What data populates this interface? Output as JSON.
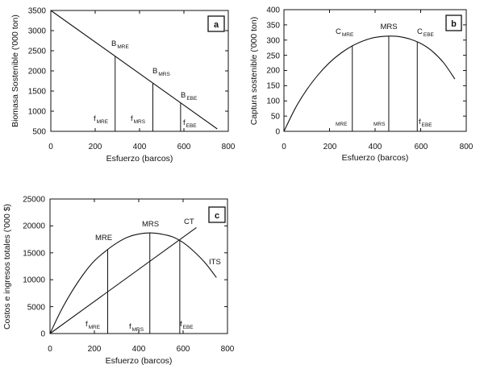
{
  "chart_data": [
    {
      "id": "a",
      "type": "line",
      "panel_label": "a",
      "xlabel": "Esfuerzo (barcos)",
      "ylabel": "Biomasa Sostenible ('000 ton)",
      "xlim": [
        0,
        800
      ],
      "ylim": [
        500,
        3500
      ],
      "xticks": [
        "0",
        "200",
        "400",
        "600",
        "800"
      ],
      "yticks": [
        "500",
        "1000",
        "1500",
        "2000",
        "2500",
        "3000",
        "3500"
      ],
      "series": [
        {
          "name": "Biomasa",
          "x": [
            0,
            750
          ],
          "y": [
            3500,
            560
          ]
        }
      ],
      "markers": [
        {
          "label": "B",
          "sub": "MRE",
          "x": 290,
          "y": 2400
        },
        {
          "label": "B",
          "sub": "MRS",
          "x": 460,
          "y": 1760
        },
        {
          "label": "B",
          "sub": "EBE",
          "x": 585,
          "y": 1200
        }
      ],
      "effort_labels": [
        {
          "label": "f",
          "sub": "MRE",
          "x": 240,
          "y": 850
        },
        {
          "label": "f",
          "sub": "MRS",
          "x": 405,
          "y": 850
        },
        {
          "label": "f",
          "sub": "EBE",
          "x": 600,
          "y": 760
        }
      ]
    },
    {
      "id": "b",
      "type": "line",
      "panel_label": "b",
      "xlabel": "Esfuerzo (barcos)",
      "ylabel": "Captura sostenible ('000 ton)",
      "xlim": [
        0,
        800
      ],
      "ylim": [
        0,
        400
      ],
      "xticks": [
        "0",
        "200",
        "400",
        "600",
        "800"
      ],
      "yticks": [
        "0",
        "50",
        "100",
        "150",
        "200",
        "250",
        "300",
        "350",
        "400"
      ],
      "series": [
        {
          "name": "Captura",
          "x": [
            0,
            50,
            100,
            150,
            200,
            250,
            300,
            350,
            400,
            460,
            500,
            550,
            600,
            650,
            700,
            750
          ],
          "y": [
            0,
            76,
            137,
            186,
            226,
            257,
            281,
            298,
            309,
            313,
            312,
            304,
            289,
            264,
            226,
            172
          ]
        }
      ],
      "markers": [
        {
          "label": "C",
          "sub": "MRE",
          "x": 300,
          "y": 280
        },
        {
          "label": "MRS",
          "sub": "",
          "x": 460,
          "y": 313
        },
        {
          "label": "C",
          "sub": "EBE",
          "x": 585,
          "y": 290
        }
      ],
      "effort_labels": [
        {
          "label": "",
          "sub": "MRE",
          "x": 250,
          "y": 25
        },
        {
          "label": "",
          "sub": "MRS",
          "x": 415,
          "y": 25
        },
        {
          "label": "f",
          "sub": "EBE",
          "x": 585,
          "y": 25
        }
      ]
    },
    {
      "id": "c",
      "type": "line",
      "panel_label": "c",
      "xlabel": "Esfuerzo (barcos)",
      "ylabel": "Costos e ingresos totales ('000 $)",
      "xlim": [
        0,
        800
      ],
      "ylim": [
        0,
        25000
      ],
      "xticks": [
        "0",
        "200",
        "400",
        "600",
        "800"
      ],
      "yticks": [
        "0",
        "5000",
        "10000",
        "15000",
        "20000",
        "25000"
      ],
      "series": [
        {
          "name": "ITS",
          "x": [
            0,
            50,
            100,
            150,
            200,
            250,
            300,
            350,
            400,
            450,
            500,
            550,
            600,
            650,
            700,
            750
          ],
          "y": [
            0,
            4300,
            7900,
            11000,
            13500,
            15300,
            16800,
            17900,
            18500,
            18700,
            18500,
            18000,
            16900,
            15200,
            13100,
            10400
          ]
        },
        {
          "name": "CT",
          "x": [
            0,
            660
          ],
          "y": [
            0,
            19700
          ]
        }
      ],
      "markers": [
        {
          "label": "MRE",
          "sub": "",
          "x": 260,
          "y": 15400
        },
        {
          "label": "MRS",
          "sub": "",
          "x": 450,
          "y": 18700
        },
        {
          "label": "CT",
          "sub": "",
          "x": 610,
          "y": 19700
        },
        {
          "label": "ITS",
          "sub": "",
          "x": 670,
          "y": 12800
        }
      ],
      "effort_labels": [
        {
          "label": "f",
          "sub": "MRE",
          "x": 260,
          "y": 1400
        },
        {
          "label": "f",
          "sub": "MRS",
          "x": 450,
          "y": 1400
        },
        {
          "label": "f",
          "sub": "EBE",
          "x": 585,
          "y": 1400
        }
      ]
    }
  ]
}
